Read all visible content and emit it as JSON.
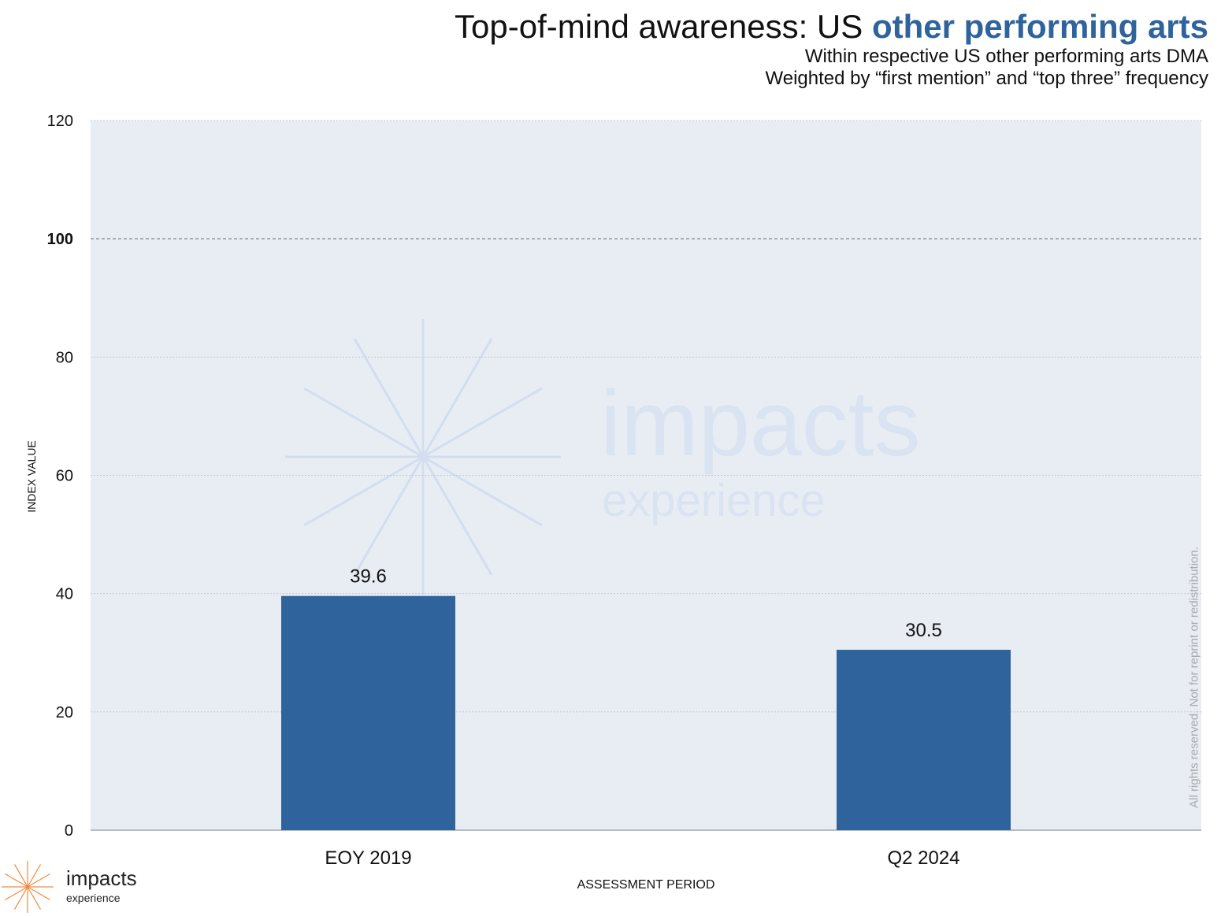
{
  "title": {
    "main": "Top-of-mind awareness: US ",
    "accent": "other performing arts"
  },
  "subtitle_lines": [
    "Within respective US other performing arts DMA",
    "Weighted by “first mention” and “top three” frequency"
  ],
  "rights_notice": "All rights reserved. Not for reprint or redistribution.",
  "logo": {
    "name": "impacts",
    "tag": "experience"
  },
  "watermark": {
    "name": "impacts",
    "tag": "experience"
  },
  "colors": {
    "bar": "#2e639b",
    "plot_bg": "#e8edf4",
    "accent": "#2e639b",
    "logo_orange": "#f08a3c"
  },
  "chart_data": {
    "type": "bar",
    "categories": [
      "EOY 2019",
      "Q2 2024"
    ],
    "values": [
      39.6,
      30.5
    ],
    "data_labels": [
      "39.6",
      "30.5"
    ],
    "xlabel": "ASSESSMENT PERIOD",
    "ylabel": "INDEX VALUE",
    "ylim": [
      0,
      120
    ],
    "yticks": [
      0,
      20,
      40,
      60,
      80,
      100,
      120
    ],
    "reference_line": 100,
    "grid": true,
    "legend": "none"
  }
}
